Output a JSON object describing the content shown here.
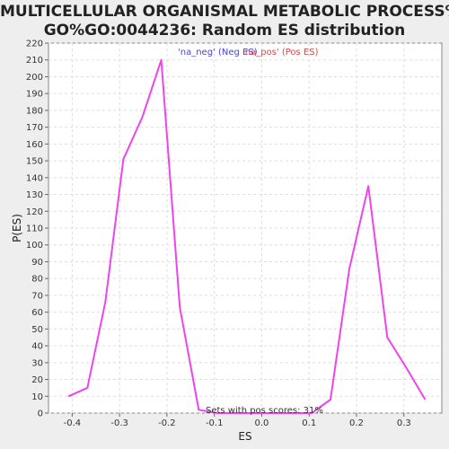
{
  "title_line1": "MULTICELLULAR ORGANISMAL METABOLIC PROCESS%",
  "title_line2": "GO%GO:0044236: Random ES distribution",
  "chart_data": {
    "type": "line",
    "xlabel": "ES",
    "ylabel": "P(ES)",
    "xlim": [
      -0.45,
      0.38
    ],
    "ylim": [
      0,
      220
    ],
    "xticks": [
      -0.4,
      -0.3,
      -0.2,
      -0.1,
      0.0,
      0.1,
      0.2,
      0.3
    ],
    "xtick_labels": [
      "-0.4",
      "-0.3",
      "-0.2",
      "-0.1",
      "0.0",
      "0.1",
      "0.2",
      "0.3"
    ],
    "yticks": [
      0,
      10,
      20,
      30,
      40,
      50,
      60,
      70,
      80,
      90,
      100,
      110,
      120,
      130,
      140,
      150,
      160,
      170,
      180,
      190,
      200,
      210,
      220
    ],
    "grid": true,
    "legend": [
      {
        "label": "'na_neg' (Neg ES)",
        "color": "#4444dd"
      },
      {
        "label": "'na_pos' (Pos ES)",
        "color": "#dd4444"
      }
    ],
    "annotation": "Sets with pos scores: 31%",
    "series": [
      {
        "color": "#ee44ee",
        "x": [
          -0.408,
          -0.368,
          -0.33,
          -0.292,
          -0.252,
          -0.212,
          -0.173,
          -0.133,
          -0.093,
          -0.053,
          0.0,
          0.05,
          0.105,
          0.145,
          0.185,
          0.225,
          0.265,
          0.305,
          0.345
        ],
        "y": [
          10,
          15,
          66,
          151,
          176,
          210,
          63,
          2,
          0,
          0,
          0,
          0,
          0,
          8,
          86,
          135,
          45,
          27,
          8
        ]
      }
    ]
  }
}
